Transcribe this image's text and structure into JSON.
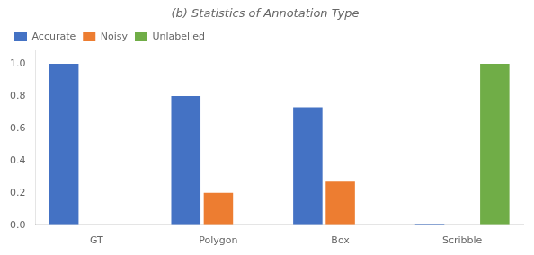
{
  "chart_data": {
    "type": "bar",
    "title": "(b) Statistics of Annotation Type",
    "categories": [
      "GT",
      "Polygon",
      "Box",
      "Scribble"
    ],
    "series": [
      {
        "name": "Accurate",
        "color": "#4472C4",
        "values": [
          1.0,
          0.8,
          0.73,
          0.01
        ]
      },
      {
        "name": "Noisy",
        "color": "#ED7D31",
        "values": [
          0.0,
          0.2,
          0.27,
          0.0
        ]
      },
      {
        "name": "Unlabelled",
        "color": "#70AD47",
        "values": [
          0.0,
          0.0,
          0.0,
          1.0
        ]
      }
    ],
    "ylim": [
      0,
      1.08
    ],
    "yticks": [
      {
        "value": 0.0,
        "label": "0.0"
      },
      0.2,
      0.4,
      0.6,
      0.8,
      {
        "value": 1.0,
        "label": "1.0"
      }
    ],
    "grid": false,
    "legend": "upper left"
  }
}
